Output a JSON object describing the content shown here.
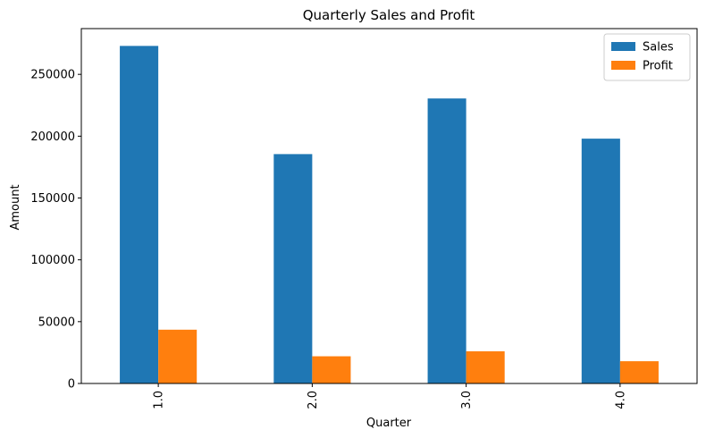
{
  "chart_data": {
    "type": "bar",
    "title": "Quarterly Sales and Profit",
    "xlabel": "Quarter",
    "ylabel": "Amount",
    "categories": [
      "1.0",
      "2.0",
      "3.0",
      "4.0"
    ],
    "series": [
      {
        "name": "Sales",
        "values": [
          273000,
          185500,
          230500,
          198000
        ],
        "color": "#1f77b4"
      },
      {
        "name": "Profit",
        "values": [
          43500,
          22000,
          26000,
          18000
        ],
        "color": "#ff7f0e"
      }
    ],
    "ylim": [
      0,
      287000
    ],
    "yticks": [
      0,
      50000,
      100000,
      150000,
      200000,
      250000
    ],
    "grid": false,
    "legend_position": "top-right"
  }
}
